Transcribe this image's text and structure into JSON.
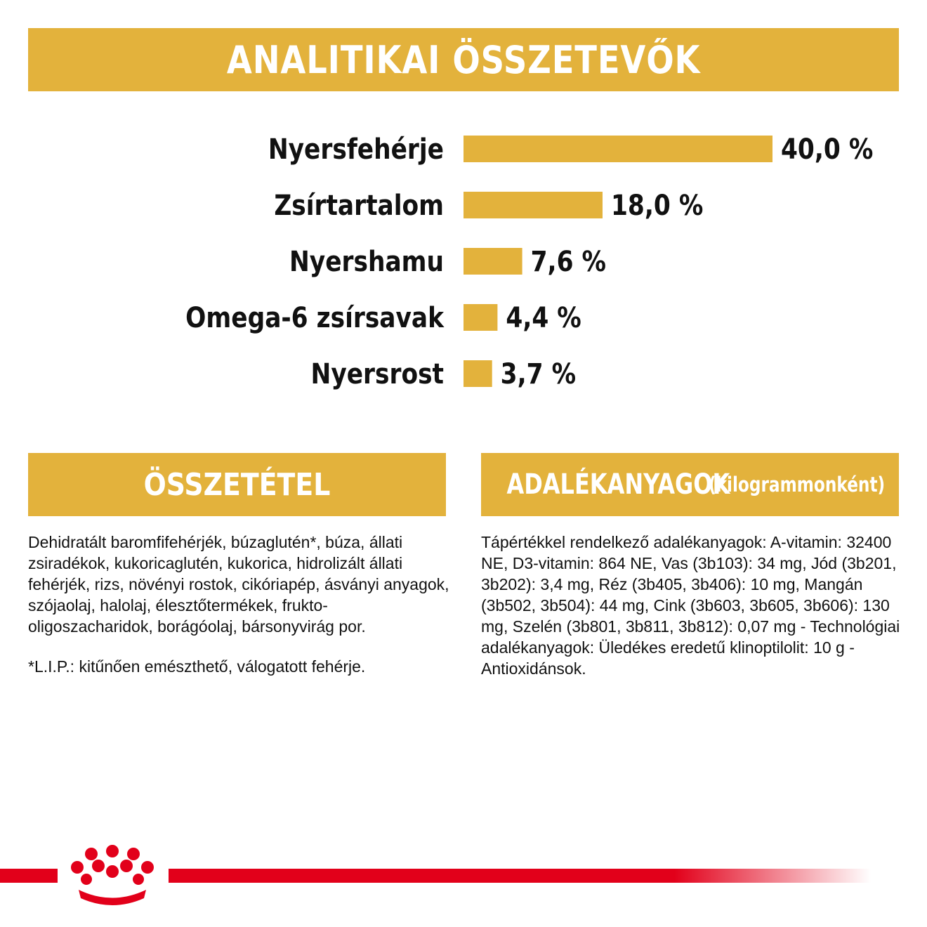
{
  "title": "ANALITIKAI ÖSSZETEVŐK",
  "chart_data": {
    "type": "bar",
    "orientation": "horizontal",
    "categories": [
      "Nyersfehérje",
      "Zsírtartalom",
      "Nyershamu",
      "Omega-6 zsírsavak",
      "Nyersrost"
    ],
    "values": [
      40.0,
      18.0,
      7.6,
      4.4,
      3.7
    ],
    "value_labels": [
      "40,0 %",
      "18,0 %",
      "7,6 %",
      "4,4 %",
      "3,7 %"
    ],
    "unit": "%",
    "bar_color": "#e3b23c",
    "grid": false
  },
  "composition": {
    "title": "ÖSSZETÉTEL",
    "text": "Dehidratált baromfifehérjék, búzaglutén*, búza, állati zsiradékok, kukoricaglutén, kukorica, hidrolizált állati fehérjék, rizs, növényi rostok, cikóriapép, ásványi anyagok, szójaolaj, halolaj, élesztőtermékek, frukto-oligoszacharidok, borágóolaj, bársonyvirág por.",
    "note": "*L.I.P.: kitűnően emészthető, válogatott fehérje."
  },
  "additives": {
    "title": "ADALÉKANYAGOK",
    "subtitle": "(kilogrammonként)",
    "text": "Tápértékkel rendelkező adalékanyagok: A-vitamin: 32400 NE, D3-vitamin: 864 NE, Vas (3b103): 34 mg, Jód (3b201, 3b202): 3,4 mg, Réz (3b405, 3b406): 10 mg, Mangán (3b502, 3b504): 44 mg, Cink (3b603, 3b605, 3b606): 130 mg, Szelén (3b801, 3b811, 3b812): 0,07 mg - Technológiai adalékanyagok: Üledékes eredetű klinoptilolit: 10 g - Antioxidánsok."
  },
  "colors": {
    "accent": "#e3b23c",
    "brand_red": "#e2001a"
  },
  "footer": {
    "logo_icon": "royal-canin-crown-icon"
  }
}
